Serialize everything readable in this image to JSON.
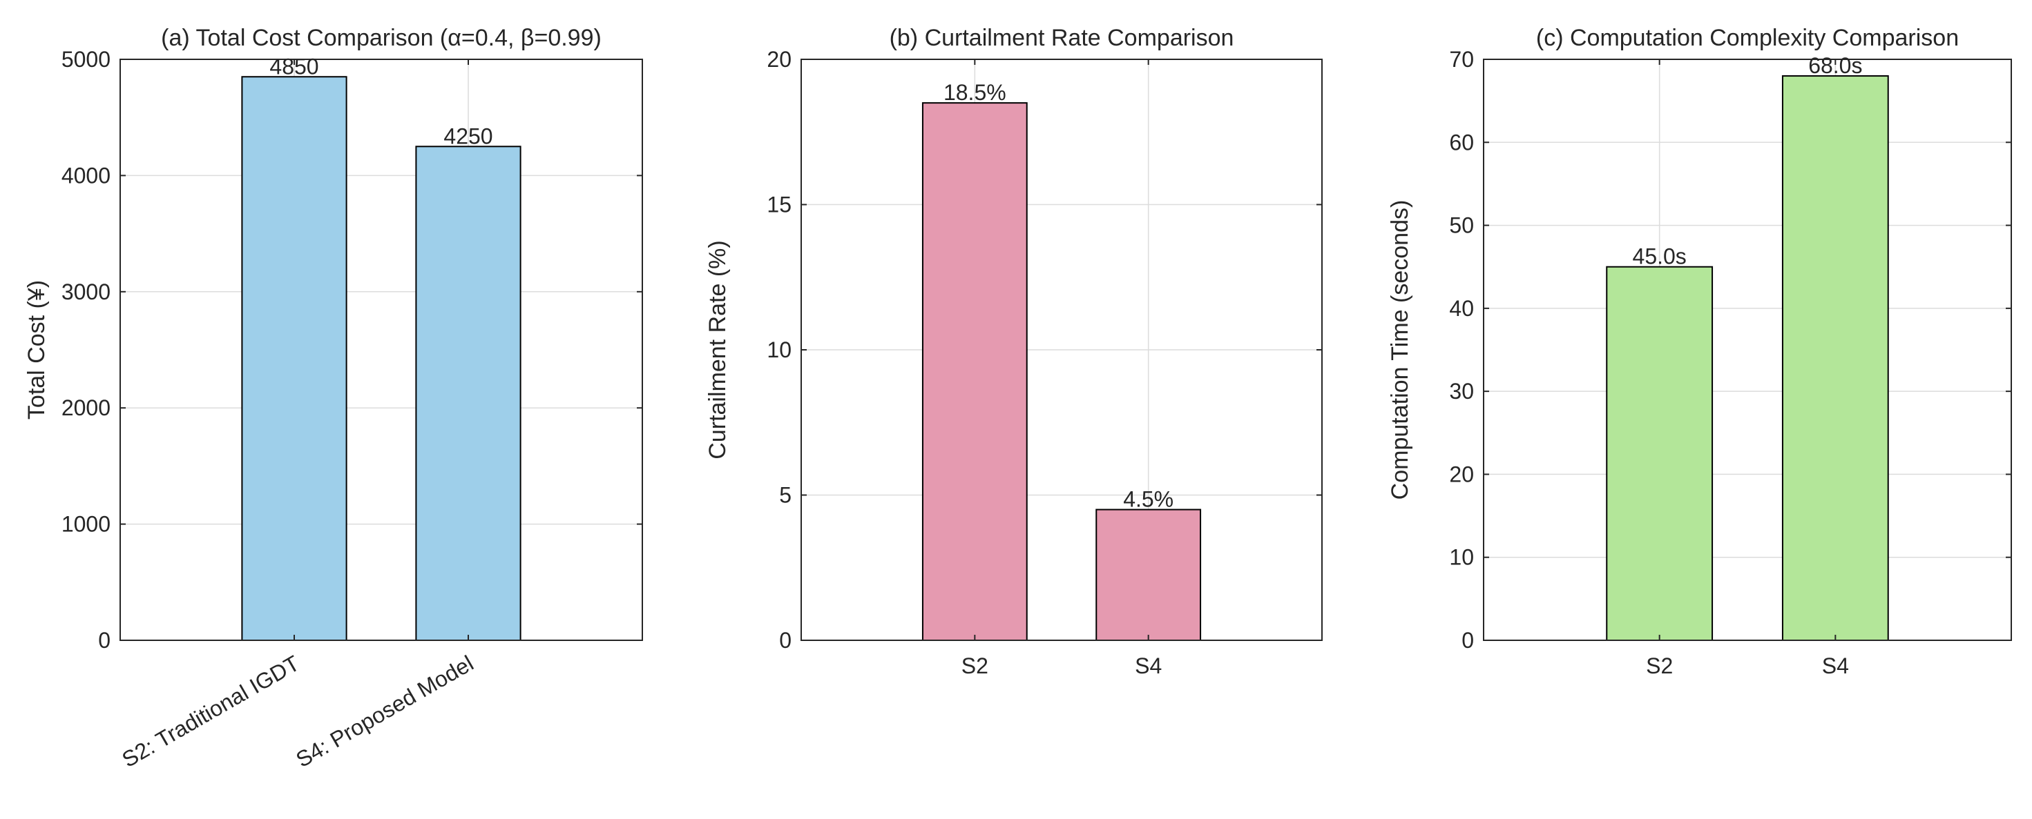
{
  "chart_data": [
    {
      "type": "bar",
      "title": "(a) Total Cost Comparison (α=0.4, β=0.99)",
      "xlabel": "",
      "ylabel": "Total Cost (¥)",
      "categories": [
        "S2: Traditional IGDT",
        "S4: Proposed Model"
      ],
      "values": [
        4850,
        4250
      ],
      "data_labels": [
        "4850",
        "4250"
      ],
      "ylim": [
        0,
        5000
      ],
      "yticks": [
        0,
        1000,
        2000,
        3000,
        4000,
        5000
      ],
      "grid": true,
      "bar_color": "#9ecfea",
      "xtick_rotation": -30
    },
    {
      "type": "bar",
      "title": "(b) Curtailment Rate Comparison",
      "xlabel": "",
      "ylabel": "Curtailment Rate (%)",
      "categories": [
        "S2",
        "S4"
      ],
      "values": [
        18.5,
        4.5
      ],
      "data_labels": [
        "18.5%",
        "4.5%"
      ],
      "ylim": [
        0,
        20
      ],
      "yticks": [
        0,
        5,
        10,
        15,
        20
      ],
      "grid": true,
      "bar_color": "#e59ab0",
      "xtick_rotation": 0
    },
    {
      "type": "bar",
      "title": "(c) Computation Complexity Comparison",
      "xlabel": "",
      "ylabel": "Computation Time (seconds)",
      "categories": [
        "S2",
        "S4"
      ],
      "values": [
        45.0,
        68.0
      ],
      "data_labels": [
        "45.0s",
        "68.0s"
      ],
      "ylim": [
        0,
        70
      ],
      "yticks": [
        0,
        10,
        20,
        30,
        40,
        50,
        60,
        70
      ],
      "grid": true,
      "bar_color": "#b3e699",
      "xtick_rotation": 0
    }
  ]
}
